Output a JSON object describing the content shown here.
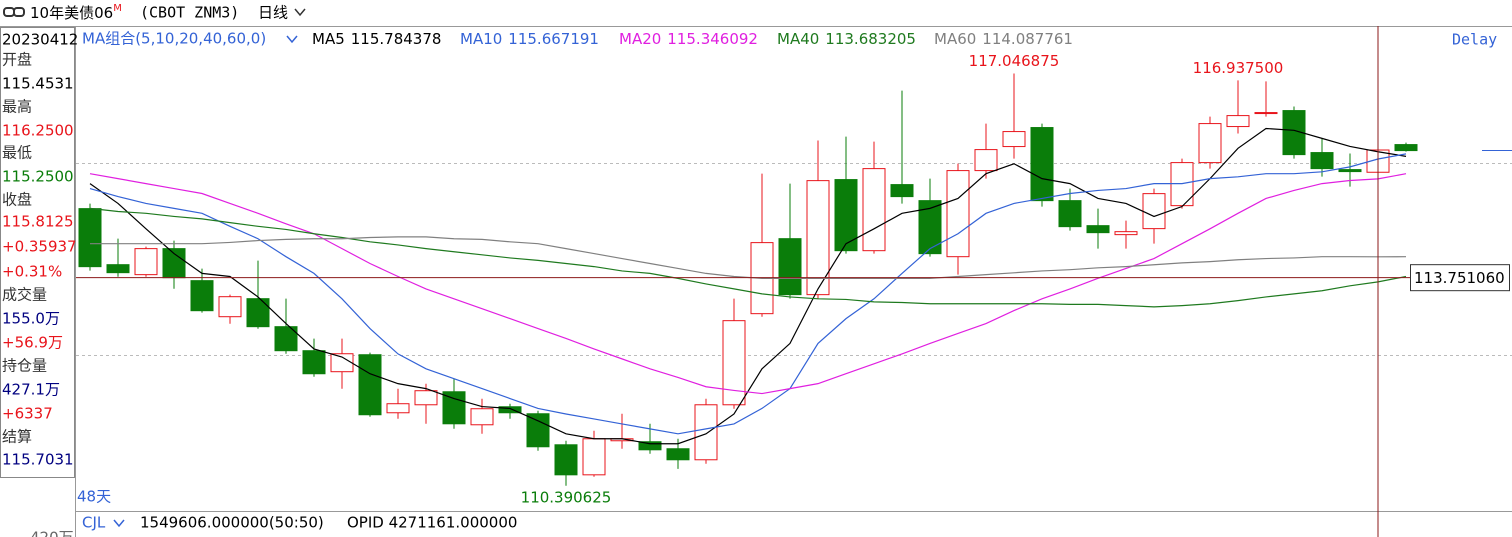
{
  "header": {
    "title": "10年美债06",
    "title_sup": "M",
    "symbol": "(CBOT ZNM3)",
    "period": "日线"
  },
  "info_panel": [
    {
      "text": "20230412",
      "color": "#000000"
    },
    {
      "text": "开盘",
      "color": "#333333"
    },
    {
      "text": "115.4531",
      "color": "#000000"
    },
    {
      "text": "最高",
      "color": "#333333"
    },
    {
      "text": "116.2500",
      "color": "#e8141b"
    },
    {
      "text": "最低",
      "color": "#333333"
    },
    {
      "text": "115.2500",
      "color": "#0a7d0a"
    },
    {
      "text": "收盘",
      "color": "#333333"
    },
    {
      "text": "115.8125",
      "color": "#e8141b"
    },
    {
      "text": "+0.35937",
      "color": "#e8141b"
    },
    {
      "text": "+0.31%",
      "color": "#e8141b"
    },
    {
      "text": "成交量",
      "color": "#333333"
    },
    {
      "text": "155.0万",
      "color": "#000080"
    },
    {
      "text": "+56.9万",
      "color": "#e8141b"
    },
    {
      "text": "持仓量",
      "color": "#333333"
    },
    {
      "text": "427.1万",
      "color": "#000080"
    },
    {
      "text": "+6337",
      "color": "#e8141b"
    },
    {
      "text": "结算",
      "color": "#333333"
    },
    {
      "text": "115.7031",
      "color": "#000080"
    }
  ],
  "footer": {
    "indicator": "CJL",
    "values": [
      "1549606.000000(50:50)",
      "OPID 4271161.000000"
    ],
    "axis_label": "420万"
  },
  "chart_data": {
    "type": "candlestick",
    "legend_title": "MA组合(5,10,20,40,60,0)",
    "status": "Delay",
    "period_label": "48天",
    "ylim": [
      110.0,
      117.75
    ],
    "up_color": "#e8141b",
    "down_color": "#0a7d0a",
    "open": [
      114.866,
      113.961,
      113.8,
      114.22,
      113.703,
      113.121,
      113.412,
      112.96,
      112.572,
      112.233,
      112.507,
      111.57,
      111.699,
      111.909,
      111.376,
      111.667,
      111.554,
      111.053,
      110.568,
      111.118,
      111.102,
      110.989,
      110.811,
      111.699,
      113.17,
      114.381,
      113.477,
      115.335,
      114.187,
      115.254,
      114.995,
      114.09,
      115.48,
      115.868,
      116.175,
      114.995,
      114.591,
      114.446,
      114.543,
      114.914,
      115.609,
      116.191,
      116.401,
      116.449,
      115.771,
      115.496,
      115.4531,
      115.9
    ],
    "high": [
      114.947,
      114.381,
      114.252,
      114.349,
      113.897,
      113.477,
      114.026,
      113.412,
      112.766,
      112.766,
      112.54,
      111.958,
      112.039,
      112.119,
      111.796,
      111.716,
      111.602,
      111.118,
      111.279,
      111.554,
      111.392,
      111.15,
      111.796,
      113.412,
      115.431,
      115.27,
      115.965,
      116.029,
      115.948,
      116.772,
      115.351,
      115.593,
      116.239,
      117.046875,
      116.239,
      115.189,
      114.866,
      114.672,
      115.189,
      115.674,
      116.352,
      116.9375,
      116.92,
      116.514,
      115.997,
      115.755,
      116.25,
      115.932
    ],
    "low": [
      113.864,
      113.767,
      113.767,
      113.573,
      113.186,
      113.008,
      112.927,
      112.523,
      112.152,
      111.958,
      111.506,
      111.473,
      111.392,
      111.312,
      111.231,
      111.473,
      110.956,
      110.390625,
      110.536,
      110.989,
      110.908,
      110.665,
      110.746,
      111.635,
      113.121,
      113.412,
      113.412,
      114.139,
      114.139,
      114.947,
      114.09,
      113.8,
      115.351,
      115.674,
      114.898,
      114.51,
      114.22,
      114.22,
      114.3,
      114.866,
      115.512,
      116.078,
      116.352,
      115.674,
      115.383,
      115.221,
      115.25,
      115.787
    ],
    "close": [
      113.929,
      113.832,
      114.22,
      113.751,
      113.218,
      113.444,
      112.96,
      112.572,
      112.2,
      112.523,
      111.538,
      111.716,
      111.926,
      111.392,
      111.635,
      111.57,
      111.021,
      110.568,
      111.15,
      111.15,
      110.972,
      110.811,
      111.699,
      113.057,
      114.317,
      113.477,
      115.318,
      114.187,
      115.512,
      115.06,
      114.139,
      115.48,
      115.819,
      116.11,
      114.995,
      114.575,
      114.478,
      114.494,
      115.108,
      115.609,
      116.239,
      116.368,
      116.417,
      115.738,
      115.512,
      115.464,
      115.8125,
      115.803
    ],
    "high_labels": [
      null,
      null,
      null,
      null,
      null,
      null,
      null,
      null,
      null,
      null,
      null,
      null,
      null,
      null,
      null,
      null,
      null,
      null,
      null,
      null,
      null,
      null,
      null,
      null,
      null,
      null,
      null,
      null,
      null,
      null,
      null,
      null,
      null,
      "117.046875",
      null,
      null,
      null,
      null,
      null,
      null,
      null,
      "116.937500",
      null,
      null,
      null,
      null,
      null,
      null
    ],
    "low_labels": [
      null,
      null,
      null,
      null,
      null,
      null,
      null,
      null,
      null,
      null,
      null,
      null,
      null,
      null,
      null,
      null,
      null,
      "110.390625",
      null,
      null,
      null,
      null,
      null,
      null,
      null,
      null,
      null,
      null,
      null,
      null,
      null,
      null,
      null,
      null,
      null,
      null,
      null,
      null,
      null,
      null,
      null,
      null,
      null,
      null,
      null,
      null,
      null,
      null
    ],
    "series": [
      {
        "name": "MA5",
        "color": "#000000",
        "values": [
          115.27,
          114.95,
          114.54,
          114.14,
          113.82,
          113.77,
          113.44,
          113.01,
          112.6,
          112.47,
          112.2,
          112.04,
          111.96,
          111.8,
          111.67,
          111.64,
          111.44,
          111.23,
          111.15,
          111.15,
          111.07,
          111.07,
          111.23,
          111.55,
          112.28,
          112.69,
          113.57,
          114.3,
          114.54,
          114.79,
          114.87,
          115.03,
          115.43,
          115.59,
          115.35,
          115.27,
          115.03,
          114.95,
          114.74,
          114.9,
          115.35,
          115.84,
          116.16,
          116.13,
          116.0,
          115.87,
          115.784378,
          115.71
        ]
      },
      {
        "name": "MA10",
        "color": "#3463d6",
        "values": [
          115.19,
          115.06,
          114.95,
          114.87,
          114.79,
          114.58,
          114.38,
          114.09,
          113.82,
          113.41,
          112.93,
          112.52,
          112.28,
          112.12,
          111.96,
          111.8,
          111.64,
          111.55,
          111.47,
          111.39,
          111.31,
          111.23,
          111.31,
          111.39,
          111.64,
          111.96,
          112.69,
          113.09,
          113.41,
          113.82,
          114.22,
          114.46,
          114.79,
          114.95,
          115.03,
          115.11,
          115.16,
          115.19,
          115.27,
          115.27,
          115.35,
          115.38,
          115.43,
          115.43,
          115.46,
          115.54,
          115.667191,
          115.75
        ]
      },
      {
        "name": "MA20",
        "color": "#e020e0",
        "values": [
          115.43,
          115.35,
          115.27,
          115.19,
          115.11,
          114.95,
          114.79,
          114.62,
          114.46,
          114.22,
          113.98,
          113.77,
          113.57,
          113.41,
          113.25,
          113.09,
          112.93,
          112.77,
          112.6,
          112.44,
          112.28,
          112.14,
          111.99,
          111.93,
          111.88,
          111.96,
          112.04,
          112.2,
          112.36,
          112.52,
          112.69,
          112.85,
          113.01,
          113.22,
          113.41,
          113.57,
          113.74,
          113.9,
          114.06,
          114.3,
          114.54,
          114.79,
          115.03,
          115.16,
          115.27,
          115.32,
          115.346092,
          115.43
        ]
      },
      {
        "name": "MA40",
        "color": "#1f7a1f",
        "values": [
          114.87,
          114.82,
          114.79,
          114.74,
          114.7,
          114.64,
          114.58,
          114.53,
          114.46,
          114.4,
          114.33,
          114.28,
          114.22,
          114.17,
          114.12,
          114.07,
          114.03,
          113.98,
          113.93,
          113.86,
          113.82,
          113.74,
          113.65,
          113.57,
          113.49,
          113.44,
          113.41,
          113.4,
          113.36,
          113.35,
          113.33,
          113.33,
          113.33,
          113.33,
          113.33,
          113.32,
          113.32,
          113.3,
          113.28,
          113.3,
          113.33,
          113.38,
          113.44,
          113.49,
          113.54,
          113.62,
          113.683205,
          113.77
        ]
      },
      {
        "name": "MA60",
        "color": "#808080",
        "values": [
          114.3,
          114.3,
          114.3,
          114.3,
          114.3,
          114.32,
          114.35,
          114.37,
          114.38,
          114.38,
          114.4,
          114.41,
          114.41,
          114.38,
          114.37,
          114.33,
          114.3,
          114.22,
          114.14,
          114.06,
          113.98,
          113.9,
          113.82,
          113.77,
          113.74,
          113.74,
          113.74,
          113.74,
          113.74,
          113.74,
          113.74,
          113.77,
          113.8,
          113.83,
          113.86,
          113.88,
          113.91,
          113.93,
          113.96,
          113.99,
          114.01,
          114.04,
          114.06,
          114.07,
          114.09,
          114.09,
          114.087761,
          114.09
        ]
      }
    ],
    "cursor": {
      "value": 113.75106,
      "label": "113.751060"
    }
  }
}
